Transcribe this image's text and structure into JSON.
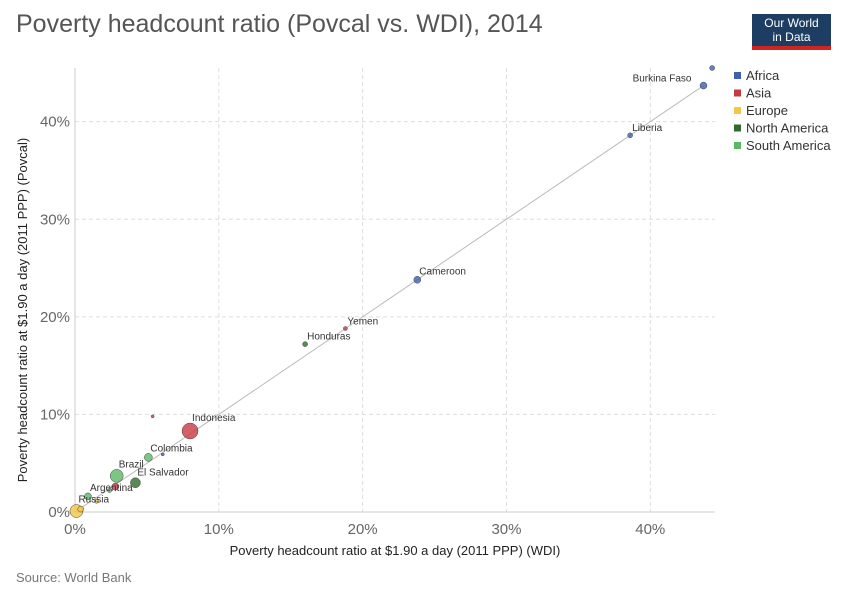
{
  "header": {
    "title": "Poverty headcount ratio (Povcal vs. WDI), 2014",
    "logo_line1": "Our World",
    "logo_line2": "in Data"
  },
  "footer": {
    "source": "Source: World Bank"
  },
  "colors": {
    "Africa": "#3f5fb0",
    "Asia": "#c93a3e",
    "Europe": "#f2c744",
    "North America": "#2f6b2a",
    "South America": "#5ab963"
  },
  "chart_data": {
    "type": "scatter",
    "xlabel": "Poverty headcount ratio at $1.90 a day (2011 PPP) (WDI)",
    "ylabel": "Poverty headcount ratio at $1.90 a day (2011 PPP) (Povcal)",
    "xlim": [
      0,
      44.5
    ],
    "ylim": [
      0,
      45.5
    ],
    "x_ticks": [
      0,
      10,
      20,
      30,
      40
    ],
    "y_ticks": [
      0,
      10,
      20,
      30,
      40
    ],
    "x_tick_labels": [
      "0%",
      "10%",
      "20%",
      "30%",
      "40%"
    ],
    "y_tick_labels": [
      "0%",
      "10%",
      "20%",
      "30%",
      "40%"
    ],
    "grid": true,
    "legend_position": "top-right",
    "legend": [
      "Africa",
      "Asia",
      "Europe",
      "North America",
      "South America"
    ],
    "reference_line": "y = x",
    "points": [
      {
        "label": "Burkina Faso",
        "x": 43.7,
        "y": 43.7,
        "region": "Africa",
        "r": 3.5
      },
      {
        "label": "",
        "x": 44.3,
        "y": 45.5,
        "region": "Africa",
        "r": 2.5
      },
      {
        "label": "Liberia",
        "x": 38.6,
        "y": 38.6,
        "region": "Africa",
        "r": 2.5
      },
      {
        "label": "Cameroon",
        "x": 23.8,
        "y": 23.8,
        "region": "Africa",
        "r": 3.5
      },
      {
        "label": "Yemen",
        "x": 18.8,
        "y": 18.8,
        "region": "Asia",
        "r": 2
      },
      {
        "label": "Honduras",
        "x": 16.0,
        "y": 17.2,
        "region": "North America",
        "r": 2.5
      },
      {
        "label": "Indonesia",
        "x": 8.0,
        "y": 8.3,
        "region": "Asia",
        "r": 8
      },
      {
        "label": "",
        "x": 5.4,
        "y": 9.8,
        "region": "Asia",
        "r": 1.5
      },
      {
        "label": "",
        "x": 6.1,
        "y": 5.9,
        "region": "Africa",
        "r": 1.5
      },
      {
        "label": "Colombia",
        "x": 5.1,
        "y": 5.6,
        "region": "South America",
        "r": 4
      },
      {
        "label": "Brazil",
        "x": 2.9,
        "y": 3.7,
        "region": "South America",
        "r": 6.5
      },
      {
        "label": "El Salvador",
        "x": 4.2,
        "y": 3.0,
        "region": "North America",
        "r": 5
      },
      {
        "label": "",
        "x": 2.8,
        "y": 2.6,
        "region": "Asia",
        "r": 3.5
      },
      {
        "label": "",
        "x": 2.4,
        "y": 2.2,
        "region": "South America",
        "r": 2
      },
      {
        "label": "Argentina",
        "x": 0.9,
        "y": 1.6,
        "region": "South America",
        "r": 3.5
      },
      {
        "label": "",
        "x": 1.5,
        "y": 1.1,
        "region": "Europe",
        "r": 2
      },
      {
        "label": "Russia",
        "x": 0.1,
        "y": 0.1,
        "region": "Europe",
        "r": 6.5
      },
      {
        "label": "",
        "x": 0.4,
        "y": 0.3,
        "region": "Europe",
        "r": 3
      }
    ]
  }
}
